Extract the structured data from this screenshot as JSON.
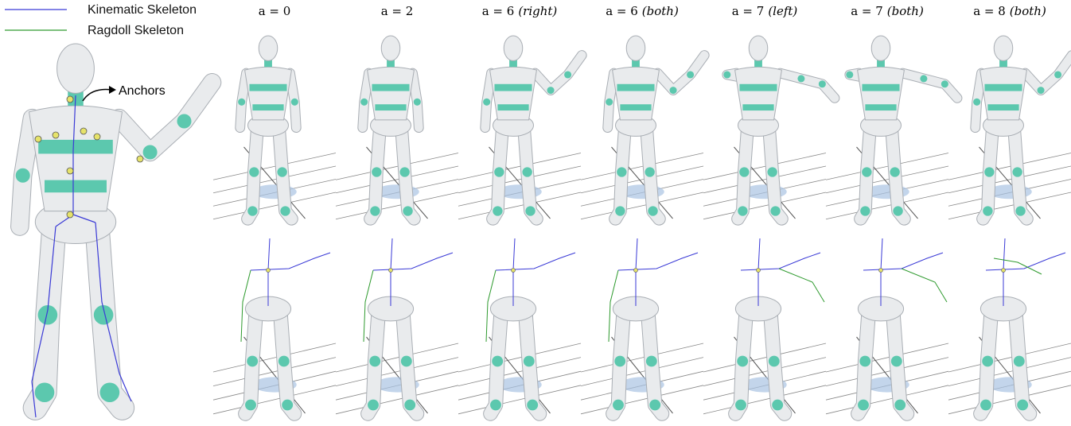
{
  "legend": [
    {
      "label": "Kinematic Skeleton",
      "color": "#3a3ad6"
    },
    {
      "label": "Ragdoll Skeleton",
      "color": "#2e9a2e"
    }
  ],
  "annotation": "Anchors",
  "columns": [
    {
      "a": "a = 0",
      "mode": null
    },
    {
      "a": "a = 2",
      "mode": null
    },
    {
      "a": "a = 6",
      "mode": "(right)"
    },
    {
      "a": "a = 6",
      "mode": "(both)"
    },
    {
      "a": "a = 7",
      "mode": "(left)"
    },
    {
      "a": "a = 7",
      "mode": "(both)"
    },
    {
      "a": "a = 8",
      "mode": "(both)"
    }
  ]
}
